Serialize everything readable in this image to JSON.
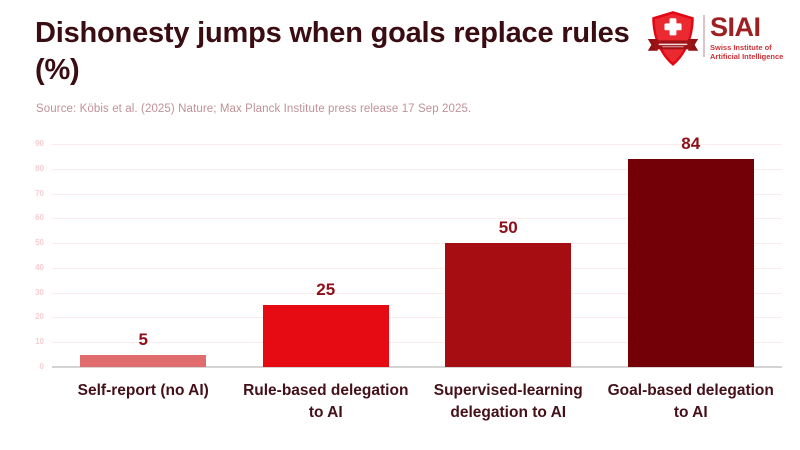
{
  "header": {
    "title": "Dishonesty jumps when goals replace rules (%)",
    "source": "Source: Köbis et al. (2025) Nature; Max Planck Institute press release 17 Sep 2025."
  },
  "logo": {
    "acronym": "SIAI",
    "org_line1": "Swiss Institute of",
    "org_line2": "Artificial Intelligence",
    "shield_color": "#e30613",
    "ribbon_color": "#9e1a1c",
    "acronym_color": "#9e2023"
  },
  "chart_data": {
    "type": "bar",
    "title": "Dishonesty jumps when goals replace rules (%)",
    "xlabel": "",
    "ylabel": "",
    "categories": [
      "Self-report (no AI)",
      "Rule-based delegation to AI",
      "Supervised-learning delegation to AI",
      "Goal-based delegation to AI"
    ],
    "values": [
      5,
      25,
      50,
      84
    ],
    "bar_colors": [
      "#e06c6e",
      "#e60a12",
      "#a60d12",
      "#730007"
    ],
    "value_label_color": "#8e1018",
    "yticks": [
      0,
      10,
      20,
      30,
      40,
      50,
      60,
      70,
      80,
      90
    ],
    "ylim": [
      0,
      90
    ],
    "grid": true,
    "legend": false
  }
}
